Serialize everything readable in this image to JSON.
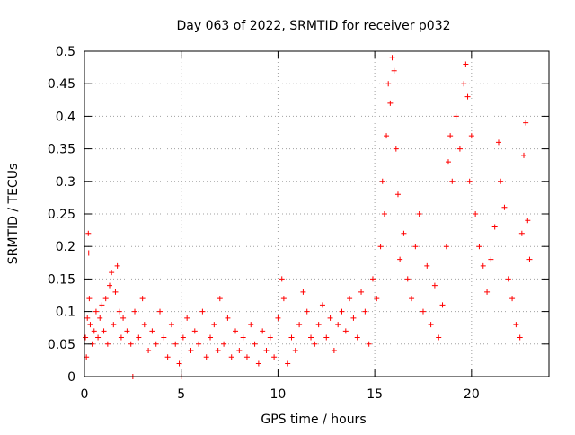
{
  "chart_data": {
    "type": "scatter",
    "title": "Day 063 of 2022, SRMTID for receiver p032",
    "xlabel": "GPS time / hours",
    "ylabel": "SRMTID / TECUs",
    "xlim": [
      0,
      24
    ],
    "ylim": [
      0,
      0.5
    ],
    "xticks": [
      0,
      5,
      10,
      15,
      20
    ],
    "yticks": [
      0,
      0.05,
      0.1,
      0.15,
      0.2,
      0.25,
      0.3,
      0.35,
      0.4,
      0.45,
      0.5
    ],
    "xtick_labels": [
      "0",
      "5",
      "10",
      "15",
      "20"
    ],
    "ytick_labels": [
      "0",
      "0.05",
      "0.1",
      "0.15",
      "0.2",
      "0.25",
      "0.3",
      "0.35",
      "0.4",
      "0.45",
      "0.5"
    ],
    "grid": true,
    "marker": "+",
    "color": "#ff0000",
    "series": [
      {
        "name": "SRMTID",
        "points": [
          [
            0.05,
            0.06
          ],
          [
            0.1,
            0.03
          ],
          [
            0.15,
            0.09
          ],
          [
            0.2,
            0.22
          ],
          [
            0.22,
            0.19
          ],
          [
            0.25,
            0.12
          ],
          [
            0.3,
            0.08
          ],
          [
            0.4,
            0.05
          ],
          [
            0.5,
            0.07
          ],
          [
            0.6,
            0.1
          ],
          [
            0.7,
            0.06
          ],
          [
            0.8,
            0.09
          ],
          [
            0.9,
            0.11
          ],
          [
            1.0,
            0.07
          ],
          [
            1.1,
            0.12
          ],
          [
            1.2,
            0.05
          ],
          [
            1.3,
            0.14
          ],
          [
            1.4,
            0.16
          ],
          [
            1.5,
            0.08
          ],
          [
            1.6,
            0.13
          ],
          [
            1.7,
            0.17
          ],
          [
            1.8,
            0.1
          ],
          [
            1.9,
            0.06
          ],
          [
            2.0,
            0.09
          ],
          [
            2.2,
            0.07
          ],
          [
            2.4,
            0.05
          ],
          [
            2.5,
            0.0
          ],
          [
            2.6,
            0.1
          ],
          [
            2.8,
            0.06
          ],
          [
            3.0,
            0.12
          ],
          [
            3.1,
            0.08
          ],
          [
            3.3,
            0.04
          ],
          [
            3.5,
            0.07
          ],
          [
            3.7,
            0.05
          ],
          [
            3.9,
            0.1
          ],
          [
            4.1,
            0.06
          ],
          [
            4.3,
            0.03
          ],
          [
            4.5,
            0.08
          ],
          [
            4.7,
            0.05
          ],
          [
            4.9,
            0.02
          ],
          [
            5.0,
            0.0
          ],
          [
            5.1,
            0.06
          ],
          [
            5.3,
            0.09
          ],
          [
            5.5,
            0.04
          ],
          [
            5.7,
            0.07
          ],
          [
            5.9,
            0.05
          ],
          [
            6.1,
            0.1
          ],
          [
            6.3,
            0.03
          ],
          [
            6.5,
            0.06
          ],
          [
            6.7,
            0.08
          ],
          [
            6.9,
            0.04
          ],
          [
            7.0,
            0.12
          ],
          [
            7.2,
            0.05
          ],
          [
            7.4,
            0.09
          ],
          [
            7.6,
            0.03
          ],
          [
            7.8,
            0.07
          ],
          [
            8.0,
            0.04
          ],
          [
            8.2,
            0.06
          ],
          [
            8.4,
            0.03
          ],
          [
            8.6,
            0.08
          ],
          [
            8.8,
            0.05
          ],
          [
            9.0,
            0.02
          ],
          [
            9.2,
            0.07
          ],
          [
            9.4,
            0.04
          ],
          [
            9.6,
            0.06
          ],
          [
            9.8,
            0.03
          ],
          [
            10.0,
            0.09
          ],
          [
            10.2,
            0.15
          ],
          [
            10.3,
            0.12
          ],
          [
            10.5,
            0.02
          ],
          [
            10.7,
            0.06
          ],
          [
            10.9,
            0.04
          ],
          [
            11.1,
            0.08
          ],
          [
            11.3,
            0.13
          ],
          [
            11.5,
            0.1
          ],
          [
            11.7,
            0.06
          ],
          [
            11.9,
            0.05
          ],
          [
            12.1,
            0.08
          ],
          [
            12.3,
            0.11
          ],
          [
            12.5,
            0.06
          ],
          [
            12.7,
            0.09
          ],
          [
            12.9,
            0.04
          ],
          [
            13.1,
            0.08
          ],
          [
            13.3,
            0.1
          ],
          [
            13.5,
            0.07
          ],
          [
            13.7,
            0.12
          ],
          [
            13.9,
            0.09
          ],
          [
            14.1,
            0.06
          ],
          [
            14.3,
            0.13
          ],
          [
            14.5,
            0.1
          ],
          [
            14.7,
            0.05
          ],
          [
            14.9,
            0.15
          ],
          [
            15.1,
            0.12
          ],
          [
            15.3,
            0.2
          ],
          [
            15.4,
            0.3
          ],
          [
            15.5,
            0.25
          ],
          [
            15.6,
            0.37
          ],
          [
            15.7,
            0.45
          ],
          [
            15.8,
            0.42
          ],
          [
            15.9,
            0.49
          ],
          [
            16.0,
            0.47
          ],
          [
            16.1,
            0.35
          ],
          [
            16.2,
            0.28
          ],
          [
            16.3,
            0.18
          ],
          [
            16.5,
            0.22
          ],
          [
            16.7,
            0.15
          ],
          [
            16.9,
            0.12
          ],
          [
            17.1,
            0.2
          ],
          [
            17.3,
            0.25
          ],
          [
            17.5,
            0.1
          ],
          [
            17.7,
            0.17
          ],
          [
            17.9,
            0.08
          ],
          [
            18.1,
            0.14
          ],
          [
            18.3,
            0.06
          ],
          [
            18.5,
            0.11
          ],
          [
            18.7,
            0.2
          ],
          [
            18.8,
            0.33
          ],
          [
            18.9,
            0.37
          ],
          [
            19.0,
            0.3
          ],
          [
            19.2,
            0.4
          ],
          [
            19.4,
            0.35
          ],
          [
            19.6,
            0.45
          ],
          [
            19.7,
            0.48
          ],
          [
            19.8,
            0.43
          ],
          [
            19.9,
            0.3
          ],
          [
            20.0,
            0.37
          ],
          [
            20.2,
            0.25
          ],
          [
            20.4,
            0.2
          ],
          [
            20.6,
            0.17
          ],
          [
            20.8,
            0.13
          ],
          [
            21.0,
            0.18
          ],
          [
            21.2,
            0.23
          ],
          [
            21.4,
            0.36
          ],
          [
            21.5,
            0.3
          ],
          [
            21.7,
            0.26
          ],
          [
            21.9,
            0.15
          ],
          [
            22.1,
            0.12
          ],
          [
            22.3,
            0.08
          ],
          [
            22.5,
            0.06
          ],
          [
            22.6,
            0.22
          ],
          [
            22.7,
            0.34
          ],
          [
            22.8,
            0.39
          ],
          [
            22.9,
            0.24
          ],
          [
            23.0,
            0.18
          ]
        ]
      }
    ]
  }
}
